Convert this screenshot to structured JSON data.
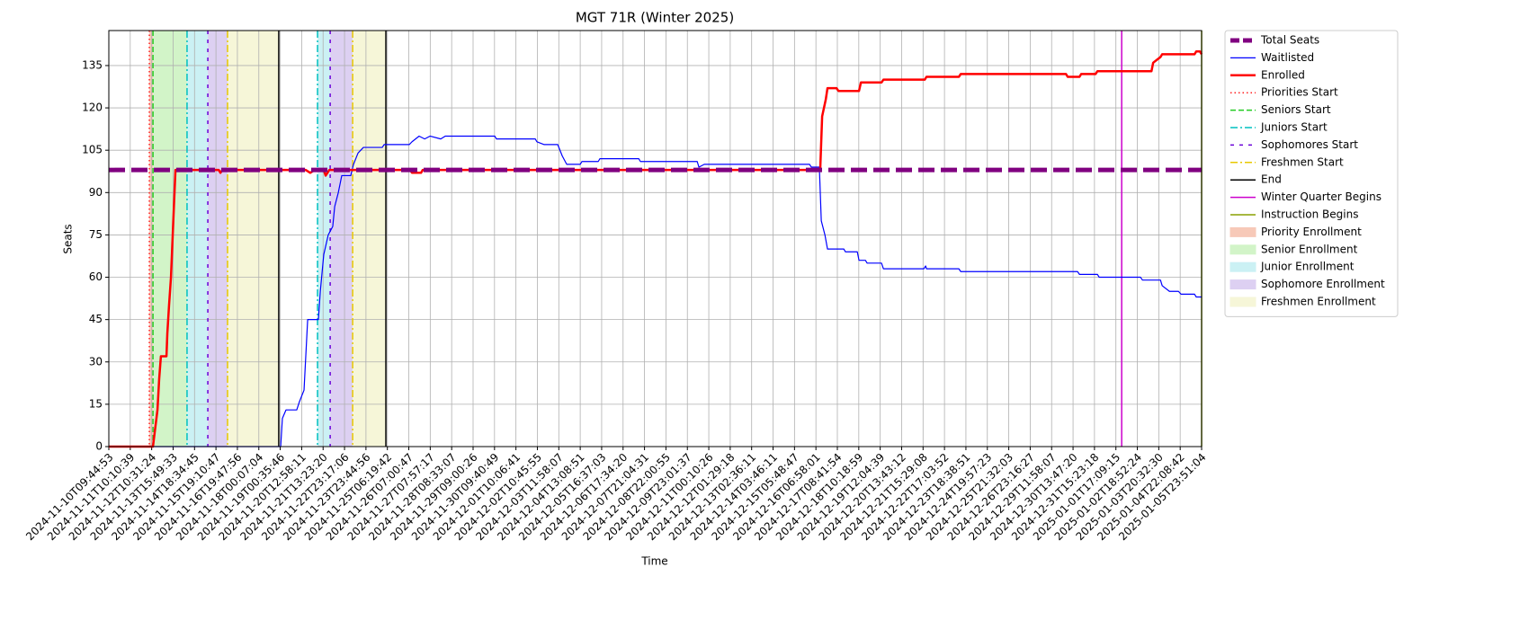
{
  "chart_data": {
    "type": "line",
    "title": "MGT 71R (Winter 2025)",
    "xlabel": "Time",
    "ylabel": "Seats",
    "xlim": [
      0,
      51
    ],
    "ylim": [
      0,
      147.4
    ],
    "grid": true,
    "yticks": [
      0,
      15,
      30,
      45,
      60,
      75,
      90,
      105,
      120,
      135
    ],
    "xticks": [
      {
        "value": 0,
        "label": "2024-11-10T09:44:53"
      },
      {
        "value": 1,
        "label": "2024-11-11T10:10:39"
      },
      {
        "value": 2,
        "label": "2024-11-12T10:31:24"
      },
      {
        "value": 3,
        "label": "2024-11-13T15:49:33"
      },
      {
        "value": 4,
        "label": "2024-11-14T18:34:45"
      },
      {
        "value": 5,
        "label": "2024-11-15T19:10:47"
      },
      {
        "value": 6,
        "label": "2024-11-16T19:47:56"
      },
      {
        "value": 7,
        "label": "2024-11-18T00:07:04"
      },
      {
        "value": 8,
        "label": "2024-11-19T00:35:46"
      },
      {
        "value": 9,
        "label": "2024-11-20T12:58:11"
      },
      {
        "value": 10,
        "label": "2024-11-21T13:23:20"
      },
      {
        "value": 11,
        "label": "2024-11-22T23:17:06"
      },
      {
        "value": 12,
        "label": "2024-11-23T23:44:56"
      },
      {
        "value": 13,
        "label": "2024-11-25T06:19:42"
      },
      {
        "value": 14,
        "label": "2024-11-26T07:00:47"
      },
      {
        "value": 15,
        "label": "2024-11-27T07:57:17"
      },
      {
        "value": 16,
        "label": "2024-11-28T08:33:07"
      },
      {
        "value": 17,
        "label": "2024-11-29T09:00:26"
      },
      {
        "value": 18,
        "label": "2024-11-30T09:40:49"
      },
      {
        "value": 19,
        "label": "2024-12-01T10:06:41"
      },
      {
        "value": 20,
        "label": "2024-12-02T10:45:55"
      },
      {
        "value": 21,
        "label": "2024-12-03T11:58:07"
      },
      {
        "value": 22,
        "label": "2024-12-04T13:08:51"
      },
      {
        "value": 23,
        "label": "2024-12-05T16:37:03"
      },
      {
        "value": 24,
        "label": "2024-12-06T17:34:20"
      },
      {
        "value": 25,
        "label": "2024-12-07T21:04:31"
      },
      {
        "value": 26,
        "label": "2024-12-08T22:00:55"
      },
      {
        "value": 27,
        "label": "2024-12-09T23:01:37"
      },
      {
        "value": 28,
        "label": "2024-12-11T00:10:26"
      },
      {
        "value": 29,
        "label": "2024-12-12T01:29:18"
      },
      {
        "value": 30,
        "label": "2024-12-13T02:36:11"
      },
      {
        "value": 31,
        "label": "2024-12-14T03:46:11"
      },
      {
        "value": 32,
        "label": "2024-12-15T05:48:47"
      },
      {
        "value": 33,
        "label": "2024-12-16T06:58:01"
      },
      {
        "value": 34,
        "label": "2024-12-17T08:41:54"
      },
      {
        "value": 35,
        "label": "2024-12-18T10:18:59"
      },
      {
        "value": 36,
        "label": "2024-12-19T12:04:39"
      },
      {
        "value": 37,
        "label": "2024-12-20T13:43:12"
      },
      {
        "value": 38,
        "label": "2024-12-21T15:29:08"
      },
      {
        "value": 39,
        "label": "2024-12-22T17:03:52"
      },
      {
        "value": 40,
        "label": "2024-12-23T18:38:51"
      },
      {
        "value": 41,
        "label": "2024-12-24T19:57:23"
      },
      {
        "value": 42,
        "label": "2024-12-25T21:32:03"
      },
      {
        "value": 43,
        "label": "2024-12-26T23:16:27"
      },
      {
        "value": 44,
        "label": "2024-12-29T11:58:07"
      },
      {
        "value": 45,
        "label": "2024-12-30T13:47:20"
      },
      {
        "value": 46,
        "label": "2024-12-31T15:23:18"
      },
      {
        "value": 47,
        "label": "2025-01-01T17:09:15"
      },
      {
        "value": 48,
        "label": "2025-01-02T18:52:24"
      },
      {
        "value": 49,
        "label": "2025-01-03T20:32:30"
      },
      {
        "value": 50,
        "label": "2025-01-04T22:08:42"
      },
      {
        "value": 51,
        "label": "2025-01-05T23:51:04"
      }
    ],
    "series": [
      {
        "name": "Total Seats",
        "color": "#800080",
        "linestyle": "dashed",
        "linewidth": 5,
        "x": [
          0,
          51
        ],
        "values": [
          98,
          98
        ]
      },
      {
        "name": "Waitlisted",
        "color": "#0000ff",
        "linestyle": "solid",
        "linewidth": 1.2,
        "x": [
          0,
          7.89,
          8.02,
          8.1,
          8.27,
          8.77,
          8.9,
          9.11,
          9.28,
          9.78,
          9.87,
          10.03,
          10.24,
          10.45,
          10.54,
          10.71,
          10.87,
          11.29,
          11.42,
          11.63,
          11.88,
          12.76,
          12.85,
          14.02,
          14.15,
          14.48,
          14.74,
          14.99,
          15.49,
          15.7,
          18.01,
          18.09,
          19.9,
          19.98,
          20.32,
          20.95,
          21.16,
          21.37,
          22.0,
          22.08,
          22.84,
          22.92,
          24.73,
          24.81,
          27.46,
          27.54,
          27.79,
          32.7,
          32.79,
          33.16,
          33.25,
          33.42,
          33.54,
          34.3,
          34.38,
          34.93,
          35.01,
          35.31,
          35.39,
          36.06,
          36.15,
          38.04,
          38.12,
          38.16,
          39.67,
          39.76,
          45.21,
          45.3,
          46.14,
          46.22,
          48.15,
          48.24,
          49.08,
          49.16,
          49.5,
          49.92,
          50.04,
          50.67,
          50.75,
          51
        ],
        "values": [
          0,
          0,
          0,
          10,
          13,
          13,
          16,
          20,
          45,
          45,
          55,
          68,
          75,
          78,
          85,
          90,
          96,
          96,
          100,
          104,
          106,
          106,
          107,
          107,
          108,
          110,
          109,
          110,
          109,
          110,
          110,
          109,
          109,
          108,
          107,
          107,
          103,
          100,
          100,
          101,
          101,
          102,
          102,
          101,
          101,
          99,
          100,
          100,
          99,
          99,
          80,
          75,
          70,
          70,
          69,
          69,
          66,
          66,
          65,
          65,
          63,
          63,
          64,
          63,
          63,
          62,
          62,
          61,
          61,
          60,
          60,
          59,
          59,
          57,
          55,
          55,
          54,
          54,
          53,
          53
        ]
      },
      {
        "name": "Enrolled",
        "color": "#ff0000",
        "linestyle": "solid",
        "linewidth": 2.5,
        "x": [
          0,
          1.97,
          2.06,
          2.14,
          2.27,
          2.35,
          2.43,
          2.69,
          2.73,
          2.81,
          2.9,
          3.02,
          3.11,
          5.13,
          5.21,
          5.3,
          9.19,
          9.4,
          9.61,
          10.03,
          10.12,
          10.29,
          14.06,
          14.15,
          14.57,
          14.65,
          33.2,
          33.29,
          33.46,
          33.54,
          33.96,
          34.05,
          35.01,
          35.1,
          36.06,
          36.15,
          38.08,
          38.16,
          39.67,
          39.76,
          44.67,
          44.75,
          45.3,
          45.38,
          46.05,
          46.14,
          48.66,
          48.74,
          48.91,
          49.08,
          49.16,
          50.67,
          50.75,
          50.92,
          51
        ],
        "values": [
          0,
          0,
          0,
          5,
          13,
          24,
          32,
          32,
          40,
          50,
          60,
          82,
          98,
          98,
          97,
          98,
          98,
          97,
          98,
          98,
          96,
          98,
          98,
          97,
          97,
          98,
          98,
          117,
          123,
          127,
          127,
          126,
          126,
          129,
          129,
          130,
          130,
          131,
          131,
          132,
          132,
          131,
          131,
          132,
          132,
          133,
          133,
          136,
          137,
          138,
          139,
          139,
          140,
          140,
          139
        ]
      }
    ],
    "markers": [
      {
        "name": "Priorities Start",
        "color": "#ff2020",
        "linestyle": "dotted",
        "x": [
          1.89
        ]
      },
      {
        "name": "Seniors Start",
        "color": "#22cc22",
        "linestyle": "dashed",
        "x": [
          2.06
        ]
      },
      {
        "name": "Juniors Start",
        "color": "#00c0c0",
        "linestyle": "dashdot",
        "x": [
          3.65,
          9.74
        ]
      },
      {
        "name": "Sophomores Start",
        "color": "#6a00d8",
        "linestyle": "loosedash",
        "x": [
          4.62,
          10.33
        ]
      },
      {
        "name": "Freshmen Start",
        "color": "#e8c800",
        "linestyle": "dashdot",
        "x": [
          5.54,
          11.38
        ]
      },
      {
        "name": "End",
        "color": "#000000",
        "linestyle": "solid",
        "x": [
          7.93,
          12.93
        ]
      },
      {
        "name": "Winter Quarter Begins",
        "color": "#cc00cc",
        "linestyle": "solid",
        "x": [
          47.27
        ]
      },
      {
        "name": "Instruction Begins",
        "color": "#8aa000",
        "linestyle": "solid",
        "x": [
          51
        ]
      }
    ],
    "spans": [
      {
        "name": "Priority Enrollment",
        "color": "#f7c9b8",
        "ranges": [
          [
            1.89,
            2.06
          ]
        ]
      },
      {
        "name": "Senior Enrollment",
        "color": "#d2f4c8",
        "ranges": [
          [
            2.06,
            3.65
          ]
        ]
      },
      {
        "name": "Junior Enrollment",
        "color": "#cbf1f4",
        "ranges": [
          [
            3.65,
            4.62
          ],
          [
            9.74,
            10.33
          ]
        ]
      },
      {
        "name": "Sophomore Enrollment",
        "color": "#ddd0f2",
        "ranges": [
          [
            4.62,
            5.54
          ],
          [
            10.33,
            11.38
          ]
        ]
      },
      {
        "name": "Freshmen Enrollment",
        "color": "#f6f6d8",
        "ranges": [
          [
            5.54,
            7.93
          ],
          [
            11.38,
            12.93
          ]
        ]
      }
    ]
  }
}
